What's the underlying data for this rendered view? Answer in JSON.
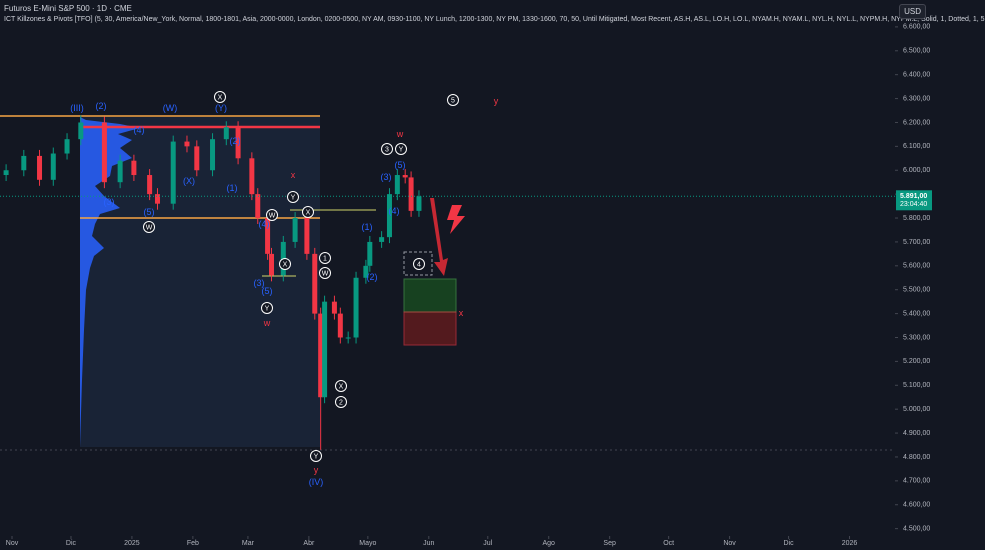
{
  "header": {
    "title": "Futuros E-Mini S&P 500 · 1D · CME",
    "indicator": "ICT Killzones & Pivots [TFO] (5, 30, America/New_York, Normal, 1800-1801, Asia, 2000-0000, London, 0200-0500, NY AM, 0930-1100, NY Lunch, 1200-1300, NY PM, 1330-1600, 70, 50, Until Mitigated, Most Recent, AS.H, AS.L, LO.H, LO.L, NYAM.H, NYAM.L, NYL.H, NYL.L, NYPM.H, NYPM.L, Solid, 1, Dotted, 1, 5",
    "currency": "USD"
  },
  "chart_data": {
    "type": "candlestick",
    "up_color": "#089981",
    "down_color": "#f23645",
    "x": [
      "2024-10-29",
      "2024-11-07",
      "2024-11-15",
      "2024-11-22",
      "2024-11-29",
      "2024-12-06",
      "2024-12-18",
      "2024-12-26",
      "2025-01-02",
      "2025-01-10",
      "2025-01-14",
      "2025-01-22",
      "2025-01-29",
      "2025-02-03",
      "2025-02-11",
      "2025-02-18",
      "2025-02-24",
      "2025-03-03",
      "2025-03-06",
      "2025-03-11",
      "2025-03-13",
      "2025-03-19",
      "2025-03-25",
      "2025-03-31",
      "2025-04-04",
      "2025-04-07",
      "2025-04-09",
      "2025-04-14",
      "2025-04-17",
      "2025-04-21",
      "2025-04-25",
      "2025-04-30",
      "2025-05-02",
      "2025-05-08",
      "2025-05-12",
      "2025-05-16",
      "2025-05-20",
      "2025-05-23",
      "2025-05-27"
    ],
    "open": [
      5980,
      6000,
      6060,
      5960,
      6070,
      6130,
      6200,
      5950,
      6040,
      5980,
      5900,
      5860,
      6120,
      6100,
      6000,
      6130,
      6180,
      6050,
      5900,
      5800,
      5650,
      5560,
      5700,
      5800,
      5650,
      5400,
      5050,
      5450,
      5400,
      5300,
      5300,
      5550,
      5600,
      5700,
      5720,
      5900,
      5980,
      5970,
      5830
    ],
    "high": [
      6025,
      6085,
      6085,
      6095,
      6155,
      6230,
      6225,
      6065,
      6065,
      6005,
      5925,
      6145,
      6145,
      6125,
      6155,
      6205,
      6205,
      6075,
      5925,
      5825,
      5675,
      5725,
      5825,
      5825,
      5675,
      5425,
      5475,
      5475,
      5425,
      5325,
      5575,
      5625,
      5725,
      5745,
      5925,
      6005,
      6005,
      5995,
      5916
    ],
    "low": [
      5955,
      5975,
      5935,
      5935,
      6045,
      6105,
      5925,
      5925,
      5955,
      5875,
      5835,
      5835,
      6075,
      5975,
      5975,
      6105,
      6025,
      5875,
      5775,
      5625,
      5535,
      5535,
      5675,
      5625,
      5375,
      4830,
      5025,
      5375,
      5275,
      5275,
      5275,
      5525,
      5575,
      5675,
      5695,
      5875,
      5945,
      5805,
      5805
    ],
    "close": [
      6000,
      6060,
      5960,
      6070,
      6130,
      6200,
      5950,
      6040,
      5980,
      5900,
      5860,
      6120,
      6100,
      6000,
      6130,
      6180,
      6050,
      5900,
      5800,
      5650,
      5560,
      5700,
      5800,
      5650,
      5400,
      5050,
      5450,
      5400,
      5300,
      5300,
      5550,
      5600,
      5700,
      5720,
      5900,
      5980,
      5970,
      5830,
      5891
    ],
    "ylim": [
      4465,
      6700
    ],
    "yticks": [
      {
        "value": 6600,
        "label": "6.600,00"
      },
      {
        "value": 6500,
        "label": "6.500,00"
      },
      {
        "value": 6400,
        "label": "6.400,00"
      },
      {
        "value": 6300,
        "label": "6.300,00"
      },
      {
        "value": 6200,
        "label": "6.200,00"
      },
      {
        "value": 6100,
        "label": "6.100,00"
      },
      {
        "value": 6000,
        "label": "6.000,00"
      },
      {
        "value": 5900,
        "label": "5.900,00"
      },
      {
        "value": 5800,
        "label": "5.800,00"
      },
      {
        "value": 5700,
        "label": "5.700,00"
      },
      {
        "value": 5600,
        "label": "5.600,00"
      },
      {
        "value": 5500,
        "label": "5.500,00"
      },
      {
        "value": 5400,
        "label": "5.400,00"
      },
      {
        "value": 5300,
        "label": "5.300,00"
      },
      {
        "value": 5200,
        "label": "5.200,00"
      },
      {
        "value": 5100,
        "label": "5.100,00"
      },
      {
        "value": 5000,
        "label": "5.000,00"
      },
      {
        "value": 4900,
        "label": "4.900,00"
      },
      {
        "value": 4800,
        "label": "4.800,00"
      },
      {
        "value": 4700,
        "label": "4.700,00"
      },
      {
        "value": 4600,
        "label": "4.600,00"
      },
      {
        "value": 4500,
        "label": "4.500,00"
      }
    ],
    "xticks": [
      {
        "value": "2024-11-01",
        "label": "Nov"
      },
      {
        "value": "2024-12-01",
        "label": "Dic"
      },
      {
        "value": "2025-01-01",
        "label": "2025"
      },
      {
        "value": "2025-02-01",
        "label": "Feb"
      },
      {
        "value": "2025-03-01",
        "label": "Mar"
      },
      {
        "value": "2025-04-01",
        "label": "Abr"
      },
      {
        "value": "2025-05-01",
        "label": "Mayo"
      },
      {
        "value": "2025-06-01",
        "label": "Jun"
      },
      {
        "value": "2025-07-01",
        "label": "Jul"
      },
      {
        "value": "2025-08-01",
        "label": "Ago"
      },
      {
        "value": "2025-09-01",
        "label": "Sep"
      },
      {
        "value": "2025-10-01",
        "label": "Oct"
      },
      {
        "value": "2025-11-01",
        "label": "Nov"
      },
      {
        "value": "2025-12-01",
        "label": "Dic"
      },
      {
        "value": "2026-01-01",
        "label": "2026"
      }
    ],
    "last_price": {
      "value": 5891,
      "label": "5.891,00"
    },
    "countdown": "23:04:40"
  },
  "annotations": [
    {
      "text": "(III)",
      "color": "#2962ff",
      "circled": false
    },
    {
      "text": "(2)",
      "color": "#2962ff",
      "circled": false
    },
    {
      "text": "(W)",
      "color": "#2962ff",
      "circled": false
    },
    {
      "text": "X",
      "color": "#ffffff",
      "circled": true
    },
    {
      "text": "(Y)",
      "color": "#2962ff",
      "circled": false
    },
    {
      "text": "(4)",
      "color": "#2962ff",
      "circled": false
    },
    {
      "text": "(2)",
      "color": "#2962ff",
      "circled": false
    },
    {
      "text": "(1)",
      "color": "#2962ff",
      "circled": false
    },
    {
      "text": "(X)",
      "color": "#2962ff",
      "circled": false
    },
    {
      "text": "(3)",
      "color": "#2962ff",
      "circled": false
    },
    {
      "text": "(5)",
      "color": "#2962ff",
      "circled": false
    },
    {
      "text": "W",
      "color": "#ffffff",
      "circled": true
    },
    {
      "text": "x",
      "color": "#f23645",
      "circled": false
    },
    {
      "text": "Y",
      "color": "#ffffff",
      "circled": true
    },
    {
      "text": "W",
      "color": "#ffffff",
      "circled": true
    },
    {
      "text": "X",
      "color": "#ffffff",
      "circled": true
    },
    {
      "text": "(4)",
      "color": "#2962ff",
      "circled": false
    },
    {
      "text": "X",
      "color": "#ffffff",
      "circled": true
    },
    {
      "text": "(3)",
      "color": "#2962ff",
      "circled": false
    },
    {
      "text": "(5)",
      "color": "#2962ff",
      "circled": false
    },
    {
      "text": "Y",
      "color": "#ffffff",
      "circled": true
    },
    {
      "text": "w",
      "color": "#f23645",
      "circled": false
    },
    {
      "text": "1",
      "color": "#ffffff",
      "circled": true
    },
    {
      "text": "W",
      "color": "#ffffff",
      "circled": true
    },
    {
      "text": "X",
      "color": "#ffffff",
      "circled": true
    },
    {
      "text": "2",
      "color": "#ffffff",
      "circled": true
    },
    {
      "text": "Y",
      "color": "#ffffff",
      "circled": true
    },
    {
      "text": "y",
      "color": "#f23645",
      "circled": false
    },
    {
      "text": "(IV)",
      "color": "#2962ff",
      "circled": false
    },
    {
      "text": "5",
      "color": "#ffffff",
      "circled": true
    },
    {
      "text": "y",
      "color": "#f23645",
      "circled": false
    },
    {
      "text": "w",
      "color": "#f23645",
      "circled": false
    },
    {
      "text": "3",
      "color": "#ffffff",
      "circled": true
    },
    {
      "text": "Y",
      "color": "#ffffff",
      "circled": true
    },
    {
      "text": "(5)",
      "color": "#2962ff",
      "circled": false
    },
    {
      "text": "(3)",
      "color": "#2962ff",
      "circled": false
    },
    {
      "text": "(4)",
      "color": "#2962ff",
      "circled": false
    },
    {
      "text": "(1)",
      "color": "#2962ff",
      "circled": false
    },
    {
      "text": "(2)",
      "color": "#2962ff",
      "circled": false
    },
    {
      "text": "4",
      "color": "#ffffff",
      "circled": true
    },
    {
      "text": "x",
      "color": "#f23645",
      "circled": false
    }
  ]
}
